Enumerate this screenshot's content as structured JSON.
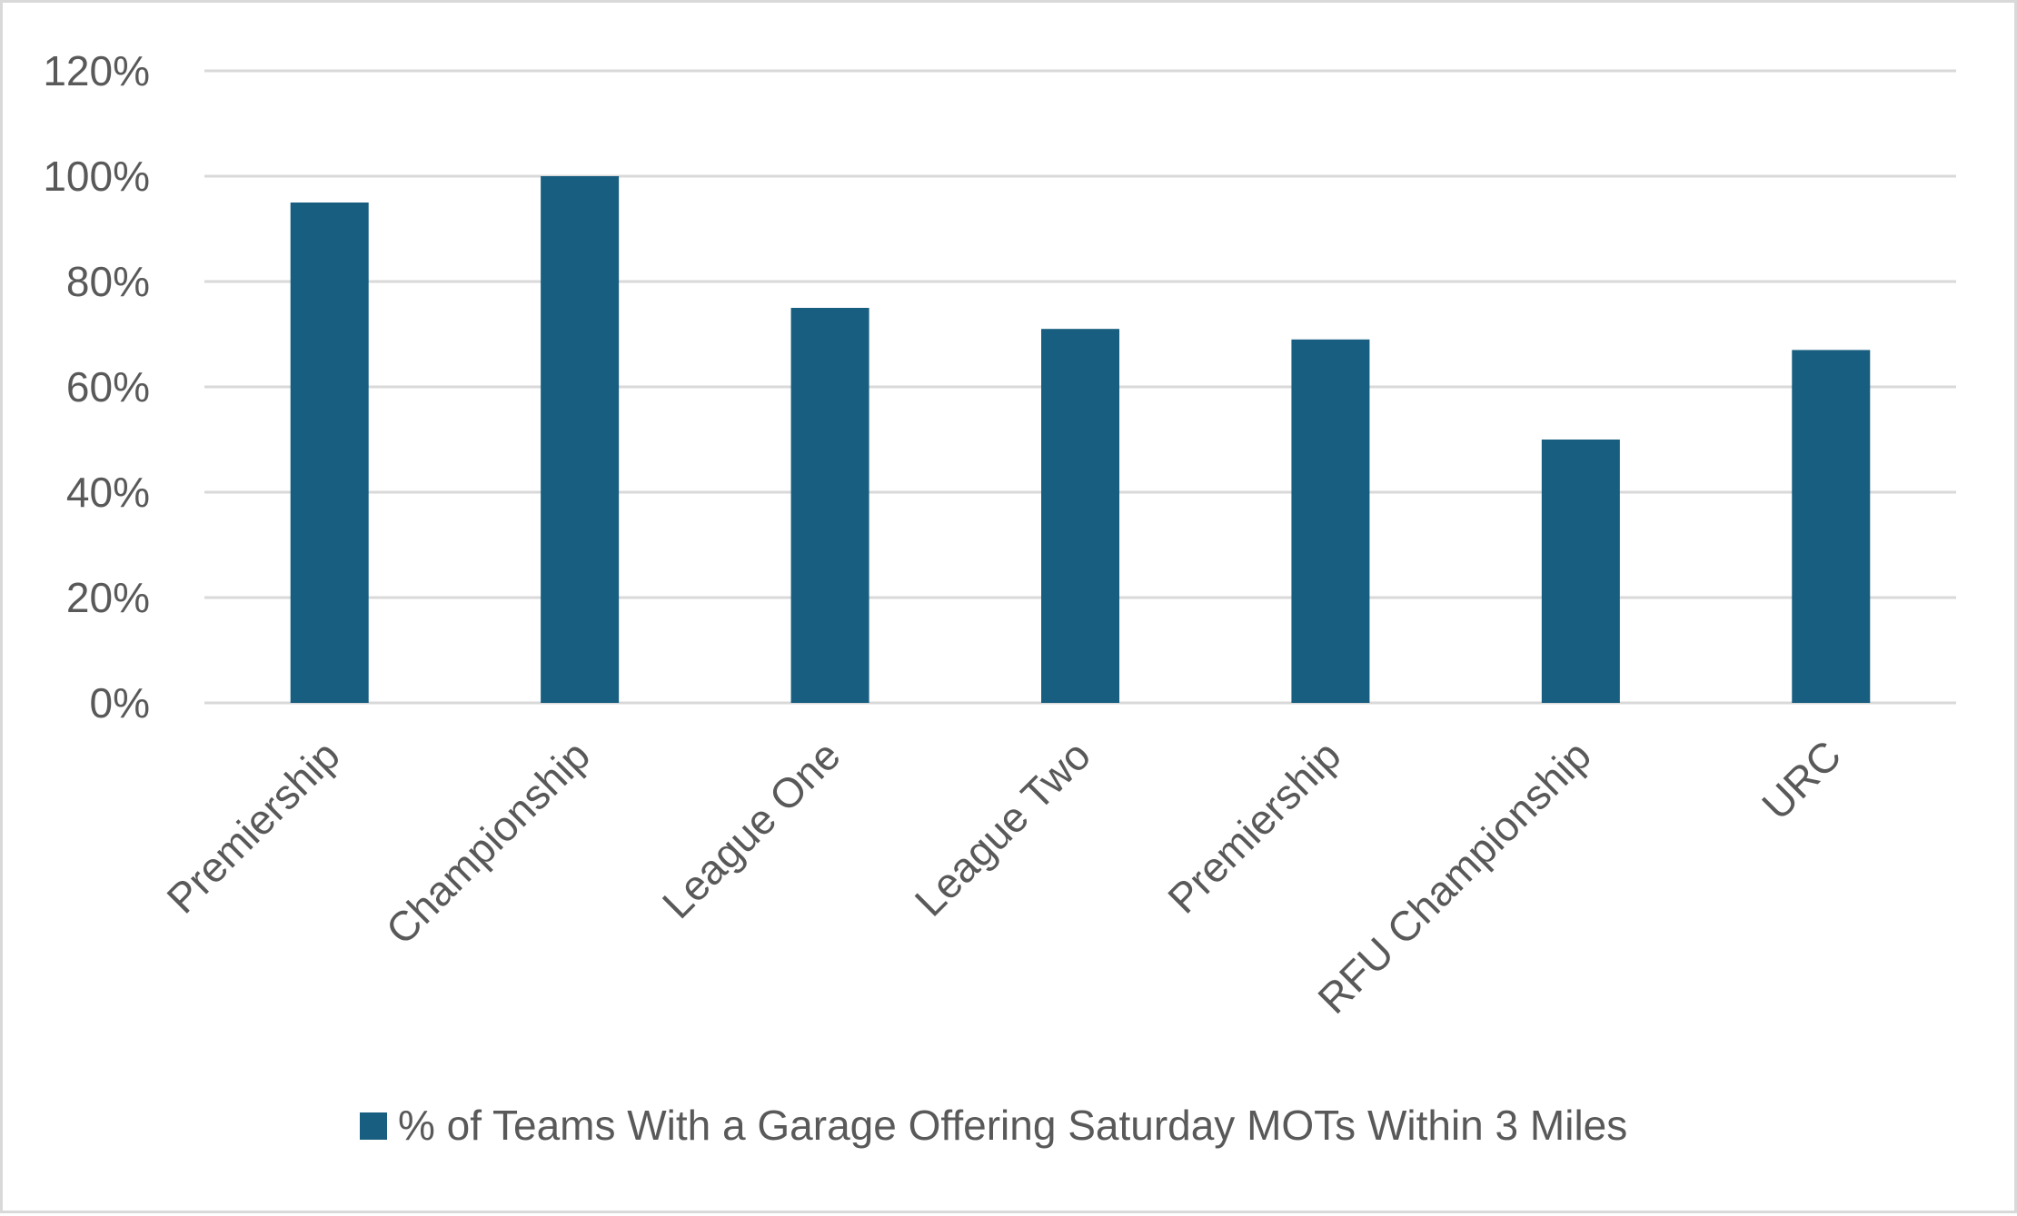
{
  "chart_data": {
    "type": "bar",
    "categories": [
      "Premiership",
      "Championship",
      "League One",
      "League Two",
      "Premiership",
      "RFU Championship",
      "URC"
    ],
    "series": [
      {
        "name": "% of Teams With a Garage Offering Saturday MOTs Within 3 Miles",
        "values": [
          95,
          100,
          75,
          71,
          69,
          50,
          67
        ],
        "color": "#175e80"
      }
    ],
    "y_ticks": [
      "0%",
      "20%",
      "40%",
      "60%",
      "80%",
      "100%",
      "120%"
    ],
    "ylim": [
      0,
      120
    ],
    "title": "",
    "xlabel": "",
    "ylabel": "",
    "grid": true,
    "legend_position": "bottom",
    "colors": {
      "bar": "#175e80",
      "grid": "#d9d9d9",
      "text": "#595959",
      "border": "#d9d9d9"
    }
  }
}
